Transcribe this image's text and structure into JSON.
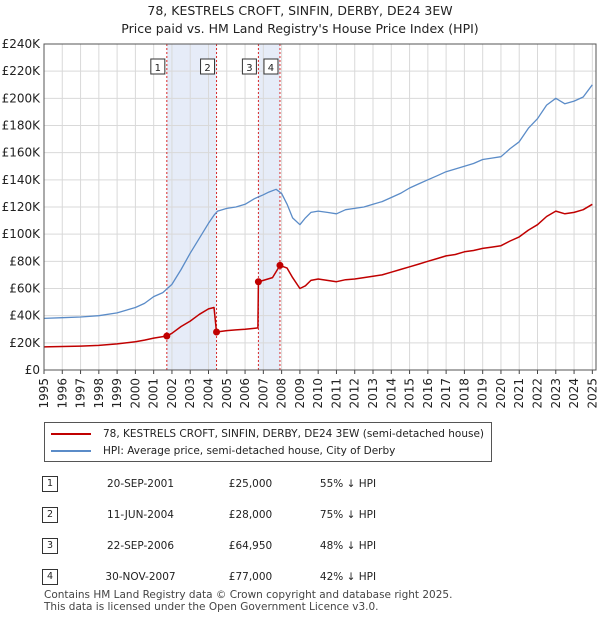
{
  "title": "78, KESTRELS CROFT, SINFIN, DERBY, DE24 3EW",
  "subtitle": "Price paid vs. HM Land Registry's House Price Index (HPI)",
  "chart_data": {
    "type": "line",
    "xlim": [
      1995,
      2025.2
    ],
    "ylim": [
      0,
      240000
    ],
    "x_ticks": [
      "1995",
      "1996",
      "1997",
      "1998",
      "1999",
      "2000",
      "2001",
      "2002",
      "2003",
      "2004",
      "2005",
      "2006",
      "2007",
      "2008",
      "2009",
      "2010",
      "2011",
      "2012",
      "2013",
      "2014",
      "2015",
      "2016",
      "2017",
      "2018",
      "2019",
      "2020",
      "2021",
      "2022",
      "2023",
      "2024",
      "2025"
    ],
    "y_ticks": [
      {
        "value": 0,
        "label": "£0"
      },
      {
        "value": 20000,
        "label": "£20K"
      },
      {
        "value": 40000,
        "label": "£40K"
      },
      {
        "value": 60000,
        "label": "£60K"
      },
      {
        "value": 80000,
        "label": "£80K"
      },
      {
        "value": 100000,
        "label": "£100K"
      },
      {
        "value": 120000,
        "label": "£120K"
      },
      {
        "value": 140000,
        "label": "£140K"
      },
      {
        "value": 160000,
        "label": "£160K"
      },
      {
        "value": 180000,
        "label": "£180K"
      },
      {
        "value": 200000,
        "label": "£200K"
      },
      {
        "value": 220000,
        "label": "£220K"
      },
      {
        "value": 240000,
        "label": "£240K"
      }
    ],
    "shaded_ranges": [
      [
        2001.72,
        2004.44
      ],
      [
        2006.73,
        2007.91
      ]
    ],
    "series": [
      {
        "name": "HPI: Average price, semi-detached house, City of Derby",
        "color": "#5b8cc8",
        "x": [
          1995.0,
          1996.0,
          1997.0,
          1998.0,
          1999.0,
          2000.0,
          2000.5,
          2001.0,
          2001.5,
          2002.0,
          2002.5,
          2003.0,
          2003.5,
          2004.0,
          2004.3,
          2004.5,
          2005.0,
          2005.5,
          2006.0,
          2006.5,
          2007.0,
          2007.3,
          2007.7,
          2008.0,
          2008.3,
          2008.6,
          2009.0,
          2009.3,
          2009.6,
          2010.0,
          2010.5,
          2011.0,
          2011.5,
          2012.0,
          2012.5,
          2013.0,
          2013.5,
          2014.0,
          2014.5,
          2015.0,
          2015.5,
          2016.0,
          2016.5,
          2017.0,
          2017.5,
          2018.0,
          2018.5,
          2019.0,
          2019.5,
          2020.0,
          2020.5,
          2021.0,
          2021.5,
          2022.0,
          2022.5,
          2023.0,
          2023.5,
          2024.0,
          2024.5,
          2025.0
        ],
        "values": [
          38000,
          38500,
          39000,
          40000,
          42000,
          46000,
          49000,
          54000,
          57000,
          63000,
          74000,
          86000,
          97000,
          108000,
          114000,
          117000,
          119000,
          120000,
          122000,
          126000,
          129000,
          131000,
          133000,
          130000,
          122000,
          112000,
          107000,
          112000,
          116000,
          117000,
          116000,
          115000,
          118000,
          119000,
          120000,
          122000,
          124000,
          127000,
          130000,
          134000,
          137000,
          140000,
          143000,
          146000,
          148000,
          150000,
          152000,
          155000,
          156000,
          157000,
          163000,
          168000,
          178000,
          185000,
          195000,
          200000,
          196000,
          198000,
          201000,
          210000
        ]
      },
      {
        "name": "78, KESTRELS CROFT, SINFIN, DERBY, DE24 3EW (semi-detached house)",
        "color": "#c00000",
        "x": [
          1995.0,
          1996.0,
          1997.0,
          1998.0,
          1999.0,
          2000.0,
          2000.5,
          2001.0,
          2001.72,
          2002.0,
          2002.5,
          2003.0,
          2003.5,
          2004.0,
          2004.3,
          2004.44,
          2005.0,
          2005.5,
          2006.0,
          2006.7,
          2006.73,
          2007.0,
          2007.5,
          2007.91,
          2008.3,
          2008.6,
          2009.0,
          2009.3,
          2009.6,
          2010.0,
          2010.5,
          2011.0,
          2011.5,
          2012.0,
          2012.5,
          2013.0,
          2013.5,
          2014.0,
          2014.5,
          2015.0,
          2015.5,
          2016.0,
          2016.5,
          2017.0,
          2017.5,
          2018.0,
          2018.5,
          2019.0,
          2019.5,
          2020.0,
          2020.5,
          2021.0,
          2021.5,
          2022.0,
          2022.5,
          2023.0,
          2023.5,
          2024.0,
          2024.5,
          2025.0
        ],
        "values": [
          17000,
          17300,
          17600,
          18100,
          19200,
          20800,
          22000,
          23500,
          25000,
          27000,
          32000,
          36000,
          41000,
          45000,
          46000,
          28000,
          29000,
          29500,
          30000,
          31000,
          64950,
          66000,
          68000,
          77000,
          75000,
          68000,
          60000,
          62000,
          66000,
          67000,
          66000,
          65000,
          66500,
          67000,
          68000,
          69000,
          70000,
          72000,
          74000,
          76000,
          78000,
          80000,
          82000,
          84000,
          85000,
          87000,
          88000,
          89500,
          90500,
          91500,
          95000,
          98000,
          103000,
          107000,
          113000,
          117000,
          115000,
          116000,
          118000,
          122000
        ]
      }
    ],
    "sales": [
      {
        "label": "1",
        "x": 2001.72,
        "price": 25000
      },
      {
        "label": "2",
        "x": 2004.44,
        "price": 28000
      },
      {
        "label": "3",
        "x": 2006.73,
        "price": 64950
      },
      {
        "label": "4",
        "x": 2007.91,
        "price": 77000
      }
    ]
  },
  "legend": {
    "property": "78, KESTRELS CROFT, SINFIN, DERBY, DE24 3EW (semi-detached house)",
    "hpi": "HPI: Average price, semi-detached house, City of Derby"
  },
  "table": [
    {
      "num": "1",
      "date": "20-SEP-2001",
      "price": "£25,000",
      "hpi": "55% ↓ HPI"
    },
    {
      "num": "2",
      "date": "11-JUN-2004",
      "price": "£28,000",
      "hpi": "75% ↓ HPI"
    },
    {
      "num": "3",
      "date": "22-SEP-2006",
      "price": "£64,950",
      "hpi": "48% ↓ HPI"
    },
    {
      "num": "4",
      "date": "30-NOV-2007",
      "price": "£77,000",
      "hpi": "42% ↓ HPI"
    }
  ],
  "footer": {
    "line1": "Contains HM Land Registry data © Crown copyright and database right 2025.",
    "line2": "This data is licensed under the Open Government Licence v3.0."
  }
}
